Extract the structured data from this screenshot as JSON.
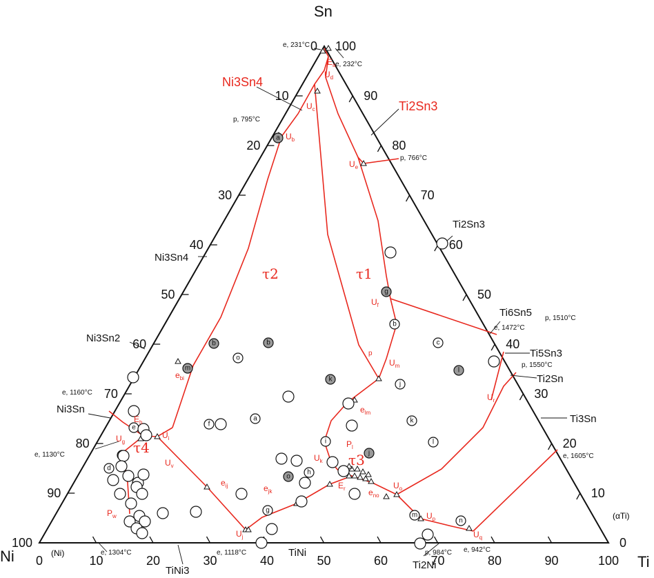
{
  "diagram": {
    "corners": {
      "top": "Sn",
      "left": "Ni",
      "right": "Ti"
    },
    "axis_ticks_bottom": [
      "0",
      "10",
      "20",
      "30",
      "40",
      "50",
      "60",
      "70",
      "80",
      "90",
      "100"
    ],
    "axis_ticks_left": [
      "0",
      "10",
      "20",
      "30",
      "40",
      "50",
      "60",
      "70",
      "80",
      "90",
      "100"
    ],
    "axis_ticks_right": [
      "100",
      "90",
      "80",
      "70",
      "60",
      "50",
      "40",
      "30",
      "20",
      "10",
      "0"
    ],
    "phases": {
      "ni3sn4_red": "Ni3Sn4",
      "ti2sn3_red": "Ti2Sn3",
      "ni3sn4": "Ni3Sn4",
      "ni3sn2": "Ni3Sn2",
      "ni3sn": "Ni3Sn",
      "ti2sn3": "Ti2Sn3",
      "ti6sn5": "Ti6Sn5",
      "ti5sn3": "Ti5Sn3",
      "ti2sn": "Ti2Sn",
      "ti3sn": "Ti3Sn",
      "tini": "TiNi",
      "tini3": "TiNi3",
      "ti2ni": "Ti2Ni",
      "ni_ss": "(Ni)",
      "ti_ss": "(αTi)"
    },
    "taus": [
      "τ2",
      "τ1",
      "τ3",
      "τ4"
    ],
    "invariants": {
      "e231": "e, 231°C",
      "e232": "e, 232°C",
      "p795": "p, 795°C",
      "p766": "p, 766°C",
      "p1510": "p, 1510°C",
      "e1472": "e, 1472°C",
      "p1550": "p, 1550°C",
      "e1605": "e, 1605°C",
      "e1160": "e, 1160°C",
      "e1130": "e, 1130°C",
      "e1304": "e, 1304°C",
      "e1118": "e, 1118°C",
      "p984": "p, 984°C",
      "e942": "e, 942°C"
    },
    "sample_labels": [
      "a",
      "b",
      "c",
      "d",
      "e",
      "f",
      "g",
      "h",
      "i",
      "j",
      "k",
      "l",
      "m",
      "n",
      "o"
    ],
    "colors": {
      "line": "#e8281e",
      "frame": "#111111",
      "filled_sample": "#9a9a9a"
    }
  }
}
